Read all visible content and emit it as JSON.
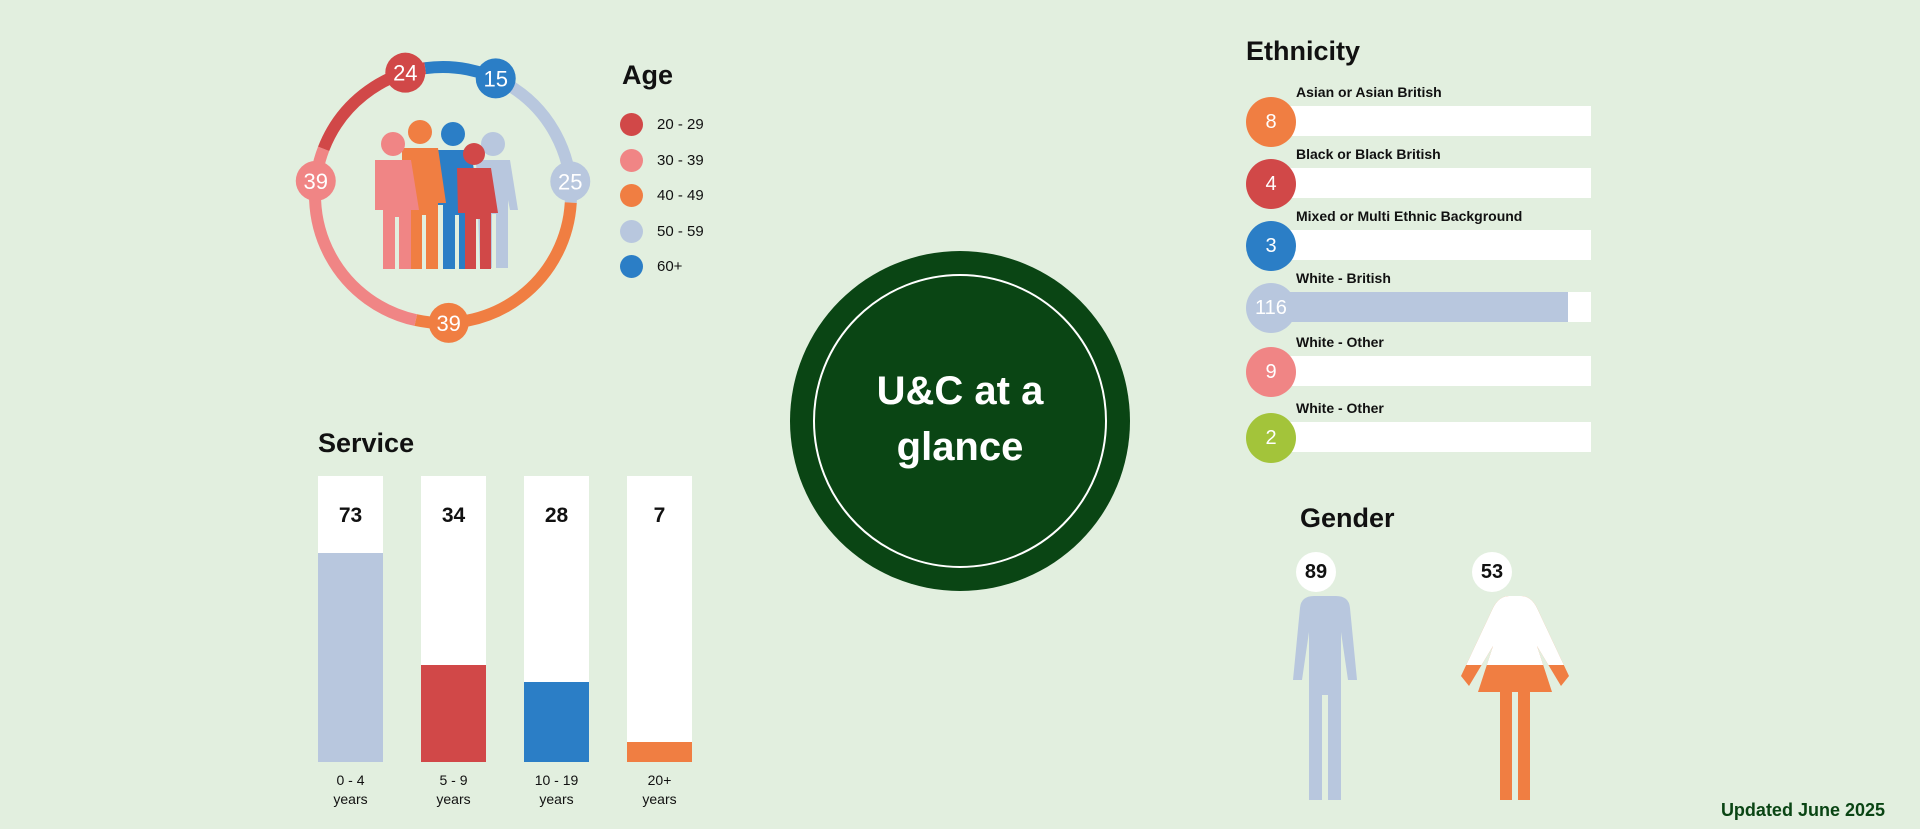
{
  "center_title_line1": "U&C at a",
  "center_title_line2": "glance",
  "updated": "Updated June 2025",
  "chart_data": [
    {
      "type": "pie",
      "title": "Age",
      "categories": [
        "20 - 29",
        "30 - 39",
        "40 - 49",
        "50 - 59",
        "60+"
      ],
      "values": [
        24,
        39,
        39,
        25,
        15
      ],
      "colors": [
        "#d14848",
        "#f08585",
        "#f07e42",
        "#b8c7de",
        "#2b7ec6"
      ],
      "legend": "right"
    },
    {
      "type": "bar",
      "title": "Service",
      "categories": [
        "0 - 4 years",
        "5 - 9 years",
        "10 - 19 years",
        "20+ years"
      ],
      "category_lines": [
        [
          "0 - 4",
          "years"
        ],
        [
          "5 - 9",
          "years"
        ],
        [
          "10 - 19",
          "years"
        ],
        [
          "20+",
          "years"
        ]
      ],
      "values": [
        73,
        34,
        28,
        7
      ],
      "colors": [
        "#b8c7de",
        "#d14848",
        "#2b7ec6",
        "#f07e42"
      ],
      "ylim": [
        0,
        100
      ]
    },
    {
      "type": "bar",
      "title": "Ethnicity",
      "orientation": "horizontal",
      "categories": [
        "Asian or Asian British",
        "Black or Black British",
        "Mixed or Multi Ethnic Background",
        "White - British",
        "White - Other",
        "White - Other"
      ],
      "values": [
        8,
        4,
        3,
        116,
        9,
        2
      ],
      "colors": [
        "#f07e42",
        "#d14848",
        "#2b7ec6",
        "#b8c7de",
        "#f08585",
        "#a3c43a"
      ],
      "xlim": [
        0,
        125
      ]
    },
    {
      "type": "bar",
      "title": "Gender",
      "values": [
        89,
        53
      ],
      "colors": [
        "#b8c7de",
        "#f07e42"
      ]
    }
  ]
}
